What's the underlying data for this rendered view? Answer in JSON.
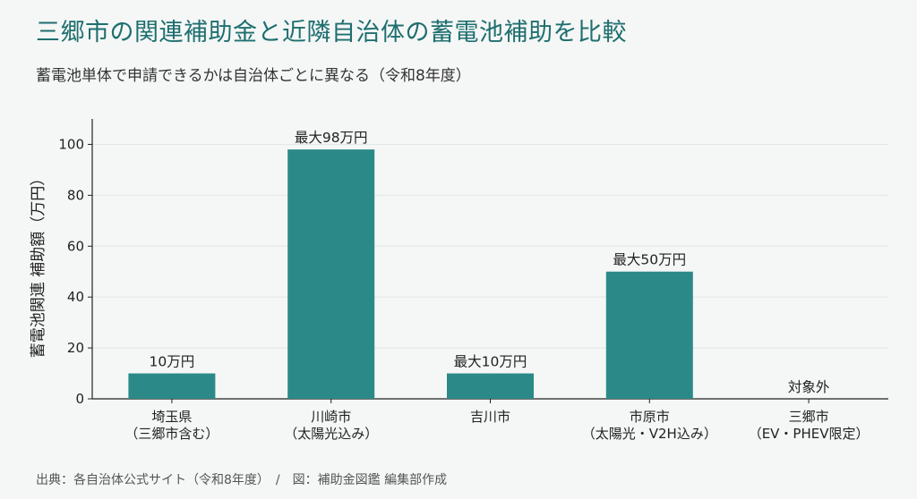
{
  "header": {
    "title": "三郷市の関連補助金と近隣自治体の蓄電池補助を比較",
    "subtitle": "蓄電池単体で申請できるかは自治体ごとに異なる（令和8年度）"
  },
  "footer": {
    "source": "出典：各自治体公式サイト（令和8年度）　/　図：補助金図鑑 編集部作成"
  },
  "colors": {
    "bar": "#2b8a88",
    "title": "#1f6f6f",
    "grid": "#e2e6e4",
    "axis": "#222222"
  },
  "chart_data": {
    "type": "bar",
    "title": "三郷市の関連補助金と近隣自治体の蓄電池補助を比較",
    "subtitle": "蓄電池単体で申請できるかは自治体ごとに異なる（令和8年度）",
    "ylabel": "蓄電池関連 補助額（万円）",
    "xlabel": "",
    "ylim": [
      0,
      110
    ],
    "yticks": [
      0,
      20,
      40,
      60,
      80,
      100
    ],
    "grid": "horizontal",
    "legend": "none",
    "categories": [
      [
        "埼玉県",
        "（三郷市含む）"
      ],
      [
        "川崎市",
        "（太陽光込み）"
      ],
      [
        "吉川市"
      ],
      [
        "市原市",
        "（太陽光・V2H込み）"
      ],
      [
        "三郷市",
        "（EV・PHEV限定）"
      ]
    ],
    "values": [
      10,
      98,
      10,
      50,
      0
    ],
    "data_labels": [
      "10万円",
      "最大98万円",
      "最大10万円",
      "最大50万円",
      "対象外"
    ]
  }
}
